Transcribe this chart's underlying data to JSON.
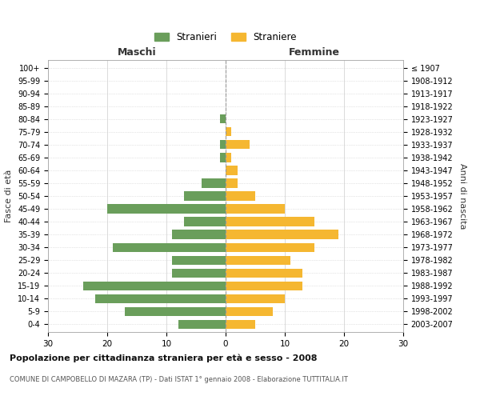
{
  "age_groups": [
    "0-4",
    "5-9",
    "10-14",
    "15-19",
    "20-24",
    "25-29",
    "30-34",
    "35-39",
    "40-44",
    "45-49",
    "50-54",
    "55-59",
    "60-64",
    "65-69",
    "70-74",
    "75-79",
    "80-84",
    "85-89",
    "90-94",
    "95-99",
    "100+"
  ],
  "birth_years": [
    "2003-2007",
    "1998-2002",
    "1993-1997",
    "1988-1992",
    "1983-1987",
    "1978-1982",
    "1973-1977",
    "1968-1972",
    "1963-1967",
    "1958-1962",
    "1953-1957",
    "1948-1952",
    "1943-1947",
    "1938-1942",
    "1933-1937",
    "1928-1932",
    "1923-1927",
    "1918-1922",
    "1913-1917",
    "1908-1912",
    "≤ 1907"
  ],
  "males": [
    8,
    17,
    22,
    24,
    9,
    9,
    19,
    9,
    7,
    20,
    7,
    4,
    0,
    1,
    1,
    0,
    1,
    0,
    0,
    0,
    0
  ],
  "females": [
    5,
    8,
    10,
    13,
    13,
    11,
    15,
    19,
    15,
    10,
    5,
    2,
    2,
    1,
    4,
    1,
    0,
    0,
    0,
    0,
    0
  ],
  "male_color": "#6a9e5b",
  "female_color": "#f5b731",
  "male_label": "Stranieri",
  "female_label": "Straniere",
  "title1": "Popolazione per cittadinanza straniera per età e sesso - 2008",
  "title2": "COMUNE DI CAMPOBELLO DI MAZARA (TP) - Dati ISTAT 1° gennaio 2008 - Elaborazione TUTTITALIA.IT",
  "xlabel_left": "Maschi",
  "xlabel_right": "Femmine",
  "ylabel_left": "Fasce di età",
  "ylabel_right": "Anni di nascita",
  "xlim": 30,
  "grid_color": "#cccccc",
  "background_color": "#ffffff",
  "spine_color": "#aaaaaa"
}
